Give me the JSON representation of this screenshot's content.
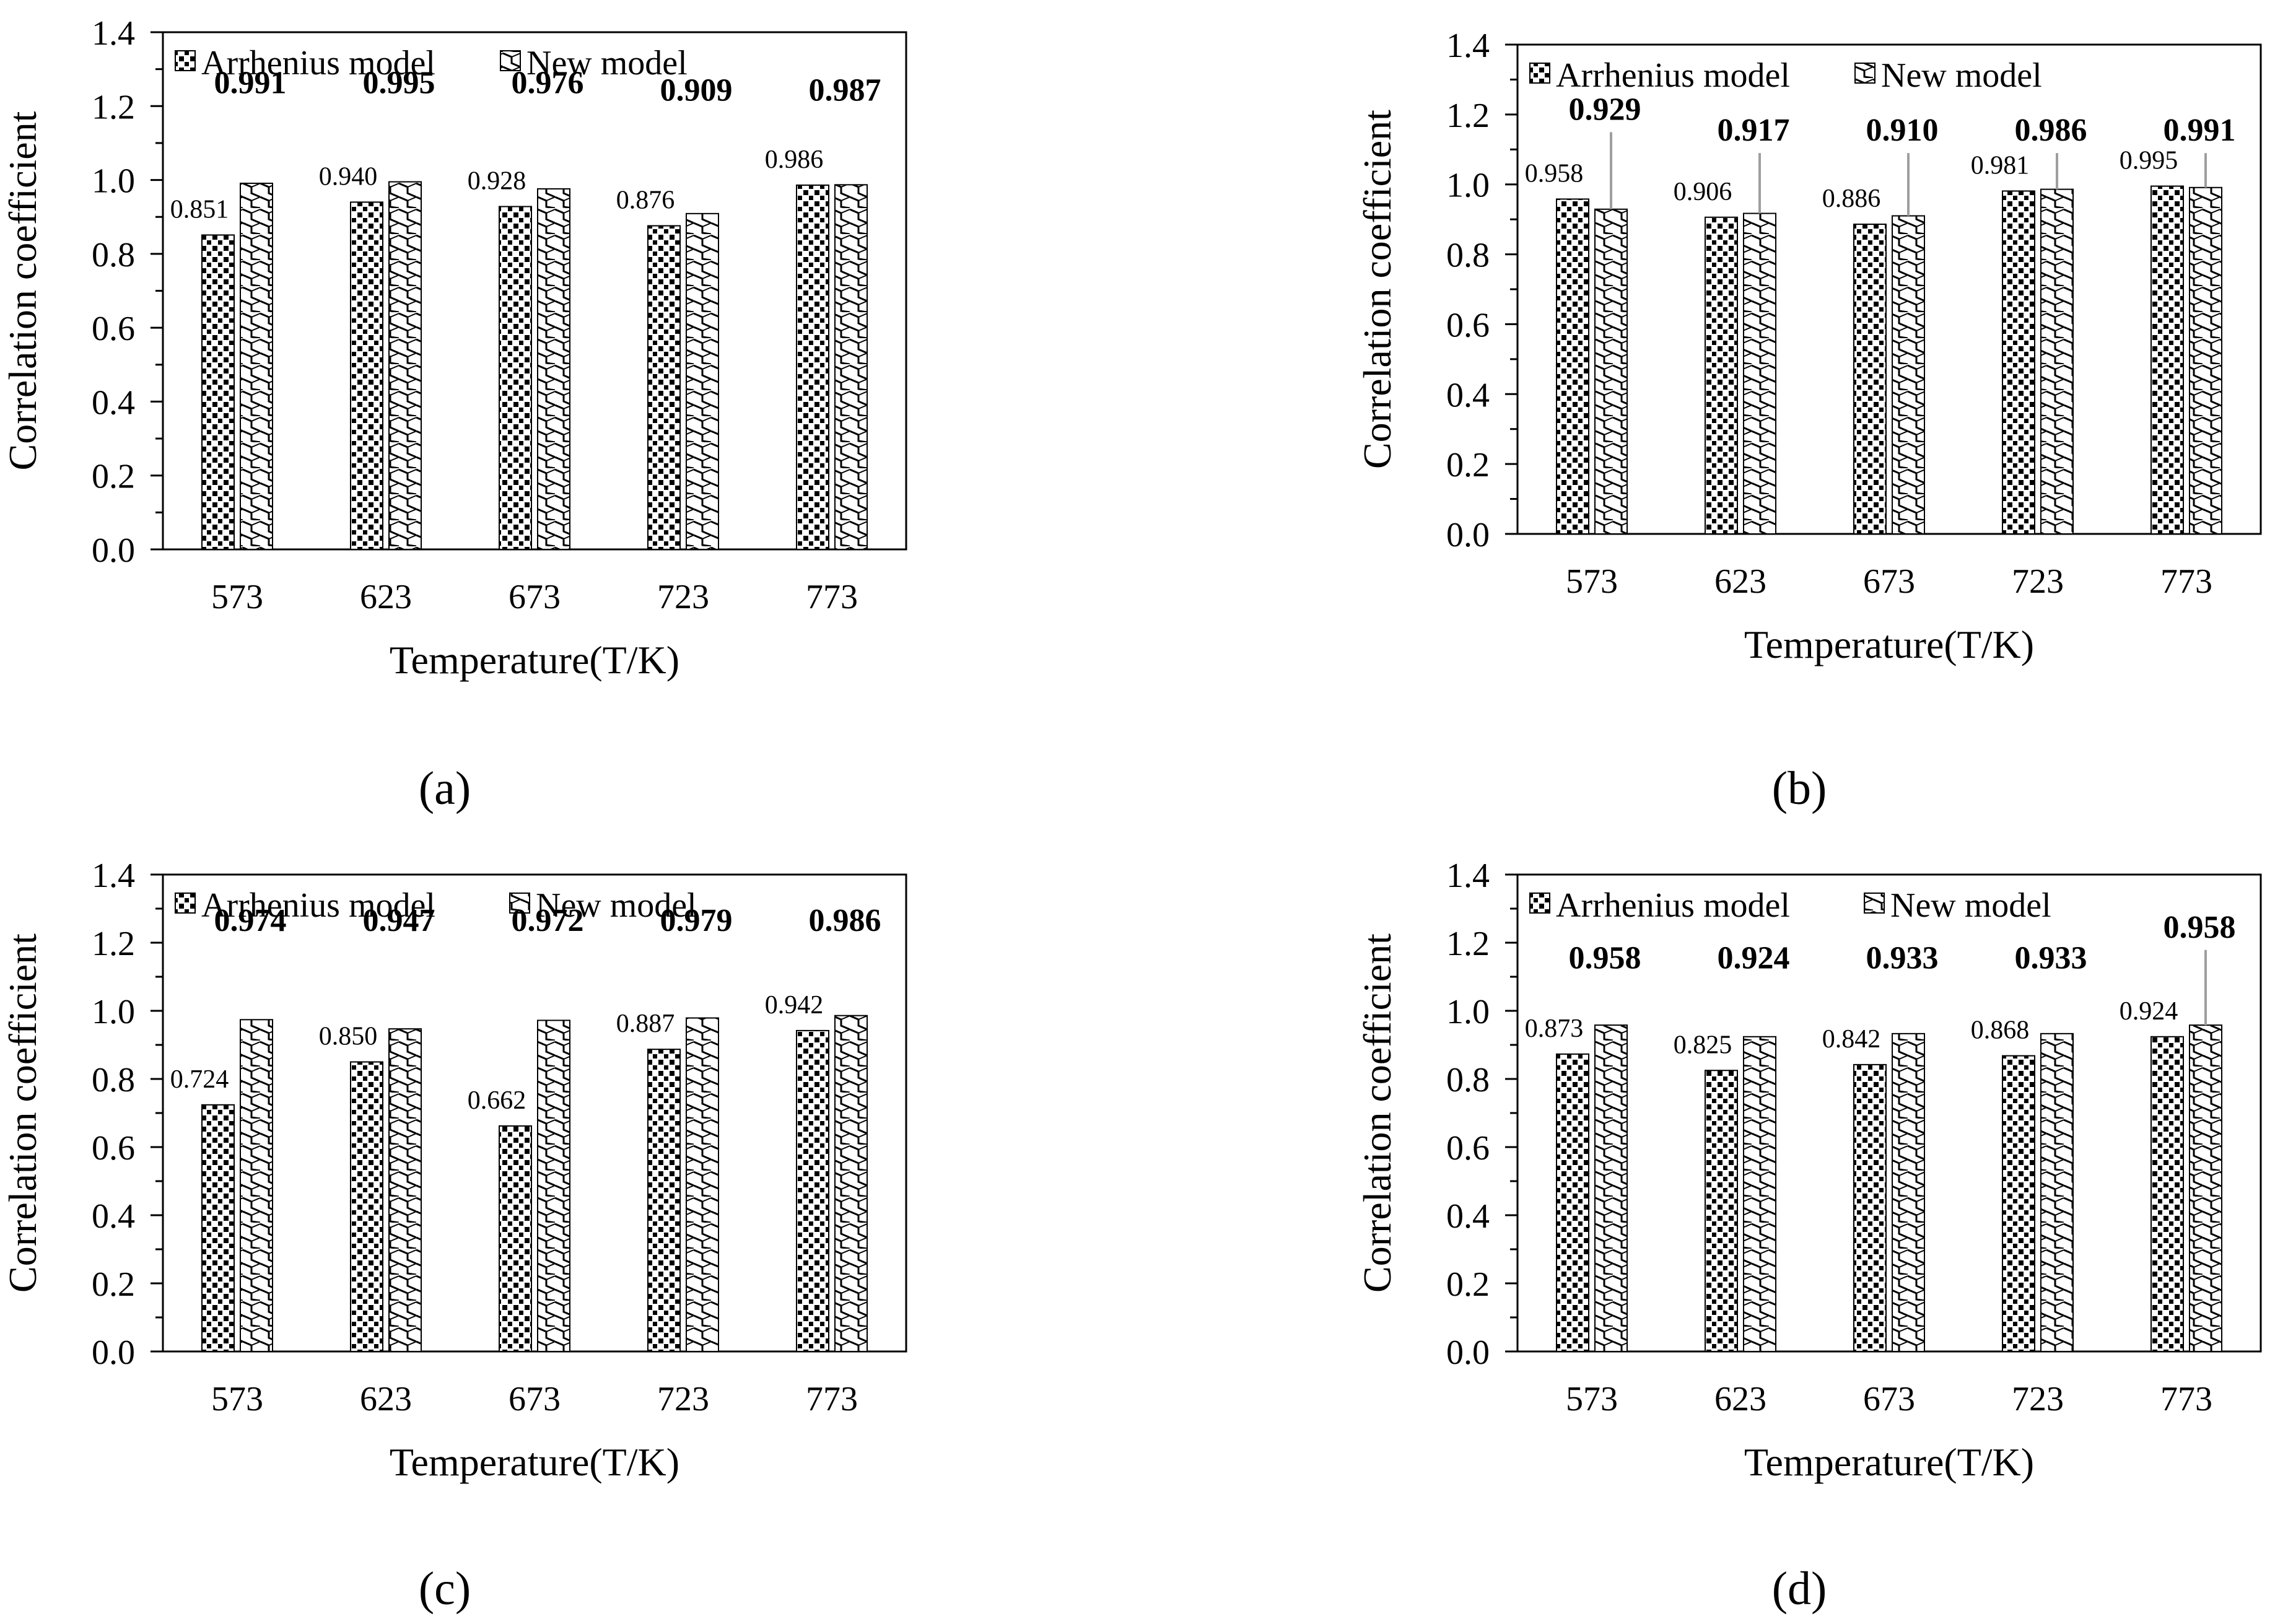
{
  "chart_data": [
    {
      "type": "bar",
      "panel_label": "(a)",
      "categories": [
        "573",
        "623",
        "673",
        "723",
        "773"
      ],
      "series": [
        {
          "name": "Arrhenius model",
          "values": [
            0.851,
            0.94,
            0.928,
            0.876,
            0.986
          ],
          "labels": [
            "0.851",
            "0.940",
            "0.928",
            "0.876",
            "0.986"
          ]
        },
        {
          "name": "New model",
          "values": [
            0.991,
            0.995,
            0.976,
            0.909,
            0.987
          ],
          "labels": [
            "0.991",
            "0.995",
            "0.976",
            "0.909",
            "0.987"
          ]
        }
      ],
      "xlabel": "Temperature(T/K)",
      "ylabel": "Correlation coefficient",
      "ylim": [
        0,
        1.4
      ],
      "yticks": [
        "0.0",
        "0.2",
        "0.4",
        "0.6",
        "0.8",
        "1.0",
        "1.2",
        "1.4"
      ],
      "leader_lines": false
    },
    {
      "type": "bar",
      "panel_label": "(b)",
      "categories": [
        "573",
        "623",
        "673",
        "723",
        "773"
      ],
      "series": [
        {
          "name": "Arrhenius model",
          "values": [
            0.958,
            0.906,
            0.886,
            0.981,
            0.995
          ],
          "labels": [
            "0.958",
            "0.906",
            "0.886",
            "0.981",
            "0.995"
          ]
        },
        {
          "name": "New model",
          "values": [
            0.929,
            0.917,
            0.91,
            0.986,
            0.991
          ],
          "labels": [
            "0.929",
            "0.917",
            "0.910",
            "0.986",
            "0.991"
          ]
        }
      ],
      "xlabel": "Temperature(T/K)",
      "ylabel": "Correlation coefficient",
      "ylim": [
        0,
        1.4
      ],
      "yticks": [
        "0.0",
        "0.2",
        "0.4",
        "0.6",
        "0.8",
        "1.0",
        "1.2",
        "1.4"
      ],
      "leader_lines": true
    },
    {
      "type": "bar",
      "panel_label": "(c)",
      "categories": [
        "573",
        "623",
        "673",
        "723",
        "773"
      ],
      "series": [
        {
          "name": "Arrhenius model",
          "values": [
            0.724,
            0.85,
            0.662,
            0.887,
            0.942
          ],
          "labels": [
            "0.724",
            "0.850",
            "0.662",
            "0.887",
            "0.942"
          ]
        },
        {
          "name": "New model",
          "values": [
            0.974,
            0.947,
            0.972,
            0.979,
            0.986
          ],
          "labels": [
            "0.974",
            "0.947",
            "0.972",
            "0.979",
            "0.986"
          ]
        }
      ],
      "xlabel": "Temperature(T/K)",
      "ylabel": "Correlation coefficient",
      "ylim": [
        0,
        1.4
      ],
      "yticks": [
        "0.0",
        "0.2",
        "0.4",
        "0.6",
        "0.8",
        "1.0",
        "1.2",
        "1.4"
      ],
      "leader_lines": false
    },
    {
      "type": "bar",
      "panel_label": "(d)",
      "categories": [
        "573",
        "623",
        "673",
        "723",
        "773"
      ],
      "series": [
        {
          "name": "Arrhenius model",
          "values": [
            0.873,
            0.825,
            0.842,
            0.868,
            0.924
          ],
          "labels": [
            "0.873",
            "0.825",
            "0.842",
            "0.868",
            "0.924"
          ]
        },
        {
          "name": "New model",
          "values": [
            0.958,
            0.924,
            0.933,
            0.933,
            0.958
          ],
          "labels": [
            "0.958",
            "0.924",
            "0.933",
            "0.933",
            "0.958"
          ]
        }
      ],
      "xlabel": "Temperature(T/K)",
      "ylabel": "Correlation coefficient",
      "ylim": [
        0,
        1.4
      ],
      "yticks": [
        "0.0",
        "0.2",
        "0.4",
        "0.6",
        "0.8",
        "1.0",
        "1.2",
        "1.4"
      ],
      "leader_lines": "last-only"
    }
  ]
}
